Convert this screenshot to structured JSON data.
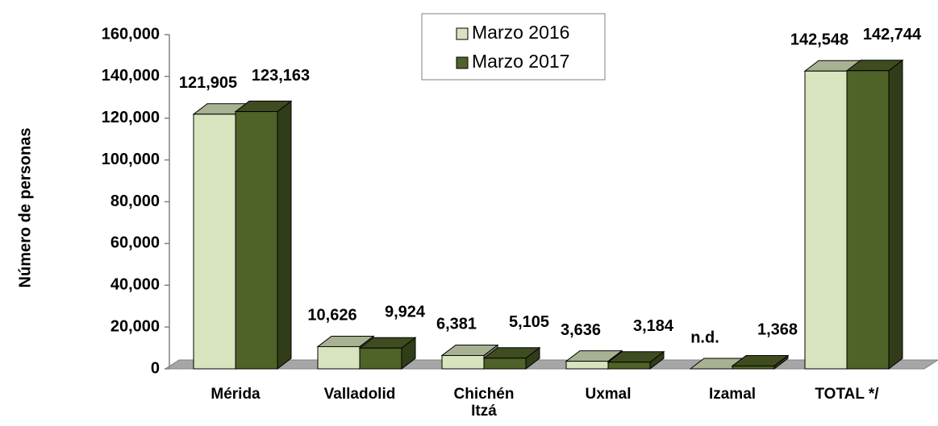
{
  "chart_data": {
    "type": "bar3d",
    "ylabel": "Número de personas",
    "categories": [
      "Mérida",
      "Valladolid",
      "Chichén Itzá",
      "Uxmal",
      "Izamal",
      "TOTAL */"
    ],
    "series": [
      {
        "name": "Marzo 2016",
        "color": "#d7e4bd",
        "values": [
          121905,
          10626,
          6381,
          3636,
          null,
          142548
        ],
        "value_labels": [
          "121,905",
          "10,626",
          "6,381",
          "3,636",
          "n.d.",
          "142,548"
        ]
      },
      {
        "name": "Marzo 2017",
        "color": "#4f6228",
        "values": [
          123163,
          9924,
          5105,
          3184,
          1368,
          142744
        ],
        "value_labels": [
          "123,163",
          "9,924",
          "5,105",
          "3,184",
          "1,368",
          "142,744"
        ]
      }
    ],
    "ylim": [
      0,
      160000
    ],
    "yticks": [
      0,
      {
        "value": 20000,
        "label": "20,000"
      },
      {
        "value": 40000,
        "label": "40,000"
      },
      {
        "value": 60000,
        "label": "60,000"
      },
      {
        "value": 80000,
        "label": "80,000"
      },
      {
        "value": 100000,
        "label": "100,000"
      },
      {
        "value": 120000,
        "label": "120,000"
      },
      {
        "value": 140000,
        "label": "140,000"
      },
      {
        "value": 160000,
        "label": "160,000"
      }
    ],
    "legend": "top"
  }
}
